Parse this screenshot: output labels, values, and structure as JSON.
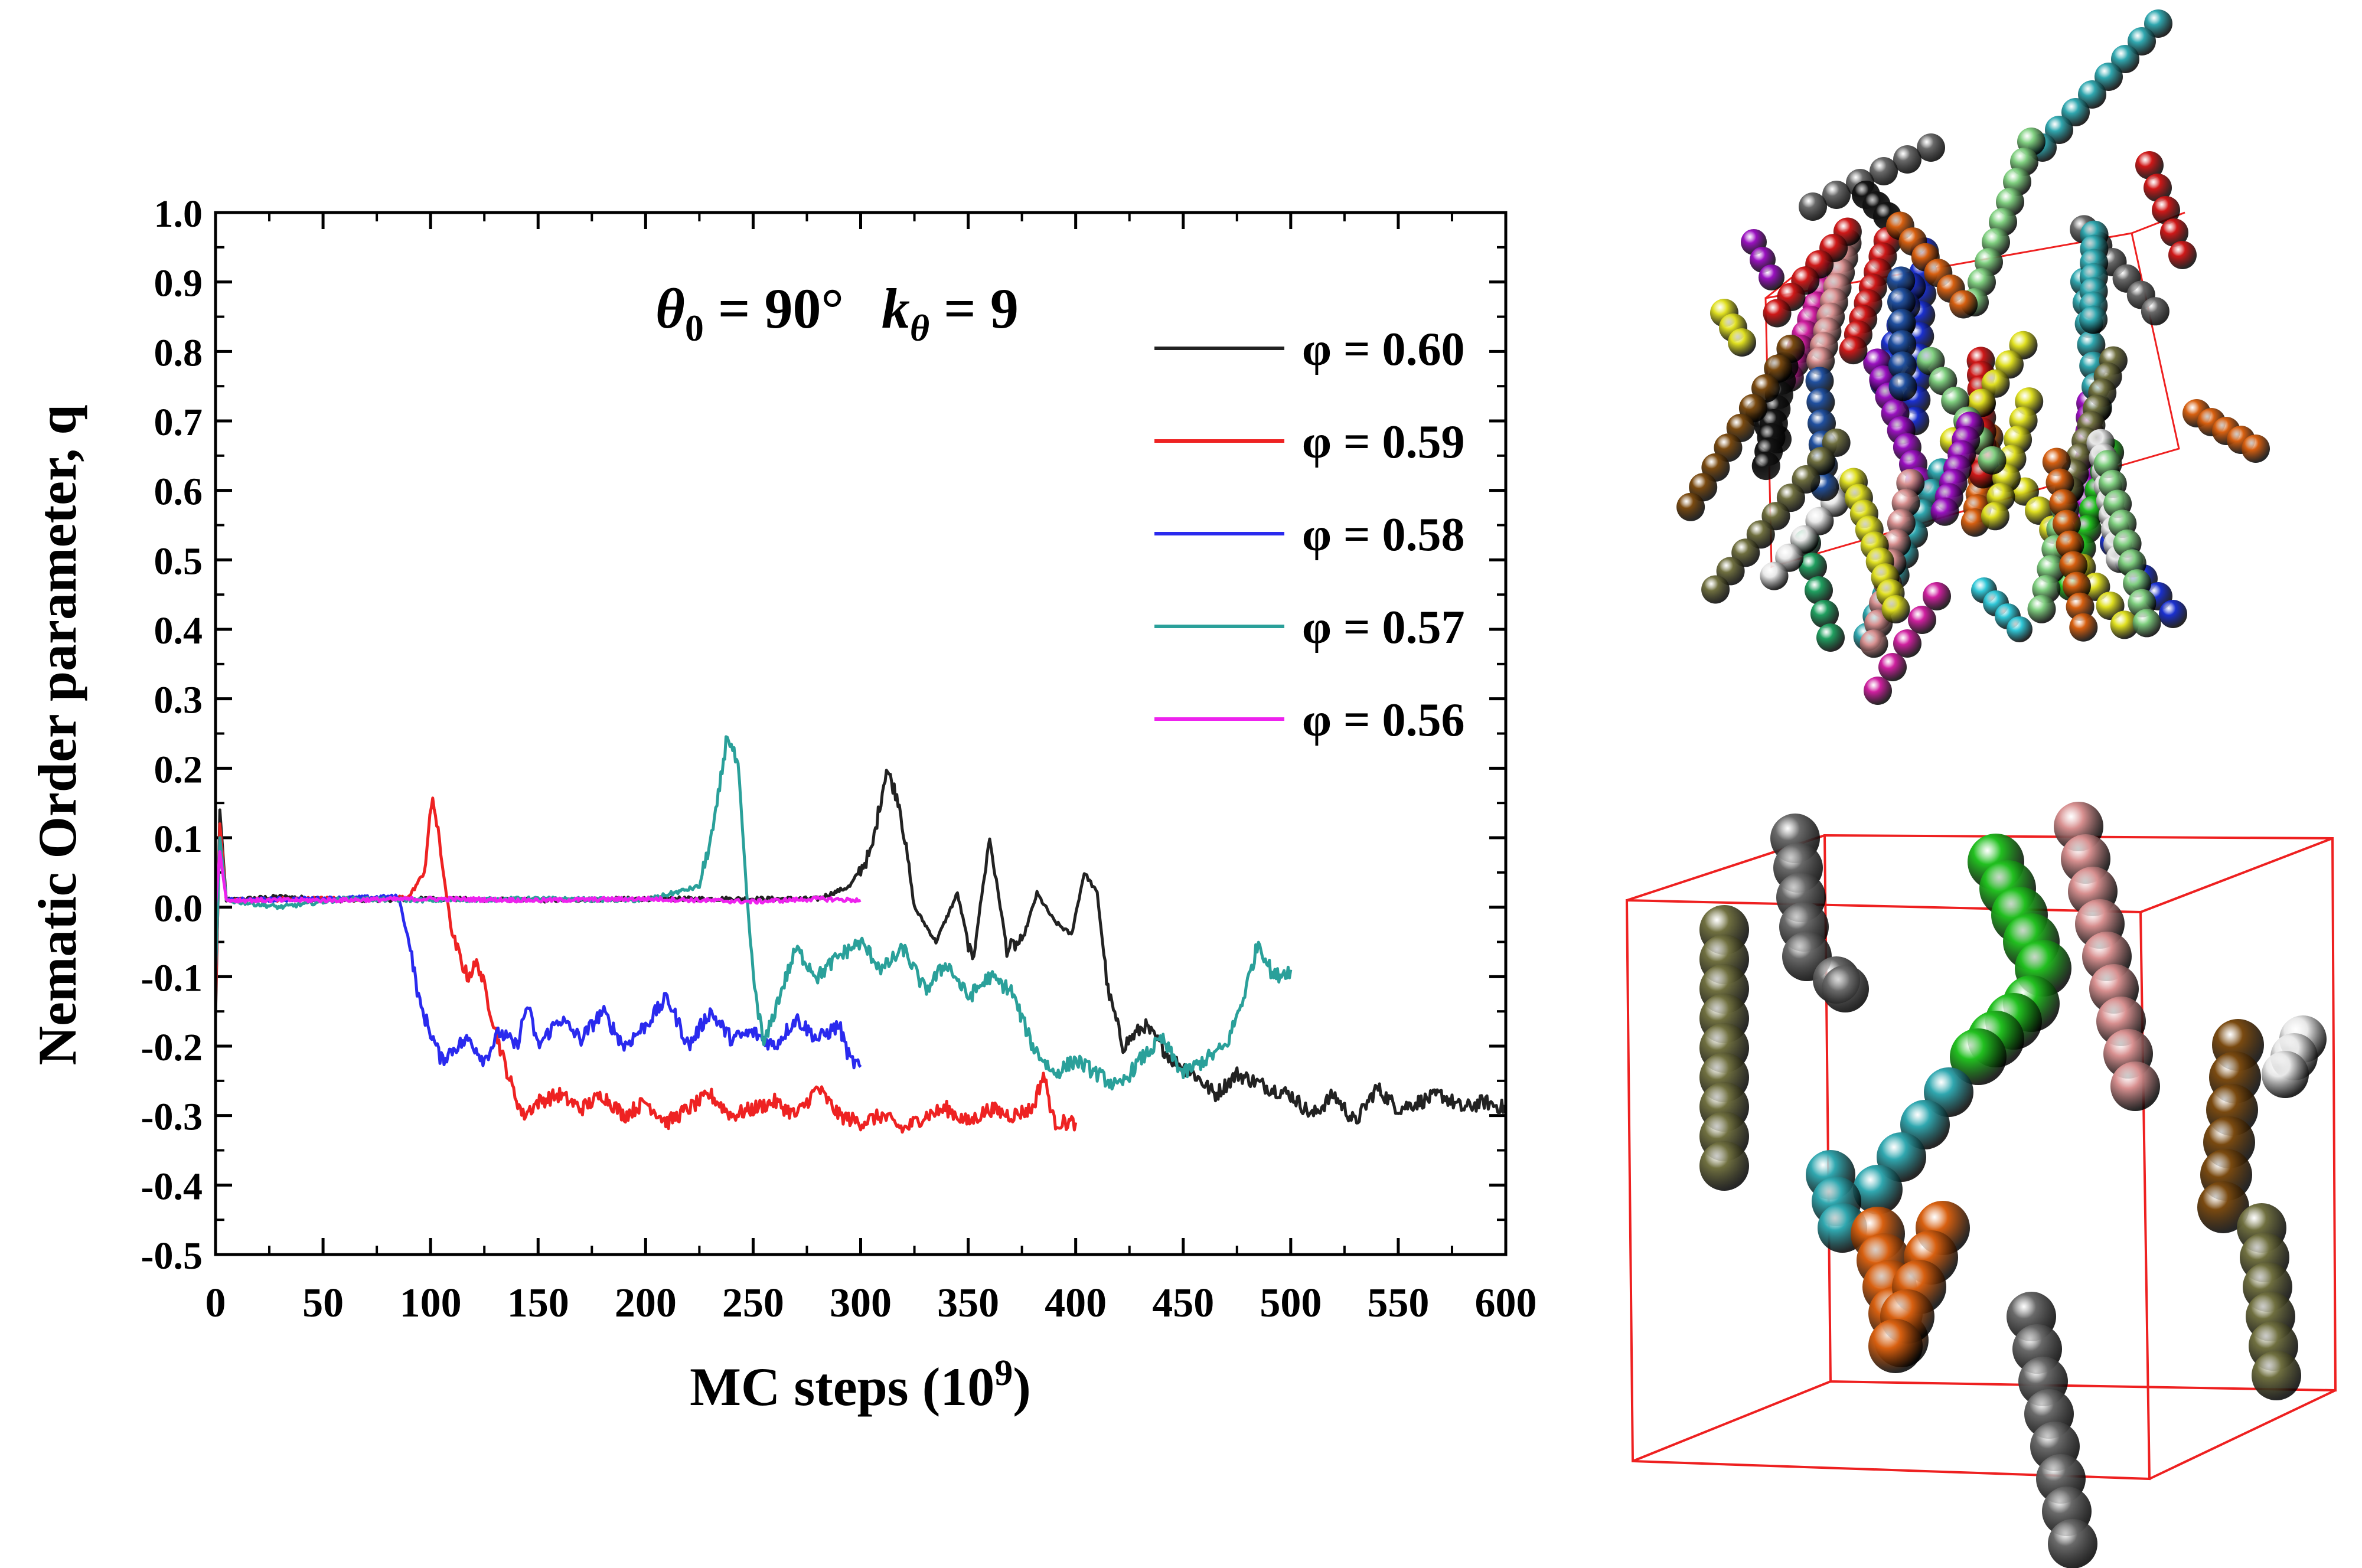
{
  "chart_data": {
    "type": "line",
    "ylabel": "Nematic Order parameter, q",
    "xlabel": "MC steps (10⁹)",
    "xlim": [
      0,
      600
    ],
    "ylim": [
      -0.5,
      1.0
    ],
    "xticks": [
      0,
      50,
      100,
      150,
      200,
      250,
      300,
      350,
      400,
      450,
      500,
      550,
      600
    ],
    "yticks": [
      -0.5,
      -0.4,
      -0.3,
      -0.2,
      -0.1,
      0.0,
      0.1,
      0.2,
      0.3,
      0.4,
      0.5,
      0.6,
      0.7,
      0.8,
      0.9,
      1.0
    ],
    "yticklabels": [
      "-0.5",
      "-0.4",
      "-0.3",
      "-0.2",
      "-0.1",
      "0.0",
      "0.1",
      "0.2",
      "0.3",
      "0.4",
      "0.5",
      "0.6",
      "0.7",
      "0.8",
      "0.9",
      "1.0"
    ],
    "legend_position": "top-right",
    "annotation": {
      "theta_label": "θ0 = 90°",
      "k_label": "kθ = 9"
    },
    "grid": false,
    "series": [
      {
        "name": "φ = 0.60",
        "color": "#222222",
        "points": [
          [
            0,
            -0.16
          ],
          [
            2,
            0.14
          ],
          [
            5,
            0.01
          ],
          [
            30,
            0.015
          ],
          [
            60,
            0.01
          ],
          [
            100,
            0.012
          ],
          [
            150,
            0.01
          ],
          [
            200,
            0.012
          ],
          [
            250,
            0.012
          ],
          [
            280,
            0.012
          ],
          [
            295,
            0.03
          ],
          [
            305,
            0.08
          ],
          [
            312,
            0.2
          ],
          [
            318,
            0.15
          ],
          [
            325,
            0.0
          ],
          [
            335,
            -0.05
          ],
          [
            345,
            0.02
          ],
          [
            352,
            -0.08
          ],
          [
            360,
            0.1
          ],
          [
            368,
            -0.06
          ],
          [
            375,
            -0.05
          ],
          [
            382,
            0.02
          ],
          [
            390,
            -0.02
          ],
          [
            398,
            -0.04
          ],
          [
            404,
            0.05
          ],
          [
            410,
            0.02
          ],
          [
            415,
            -0.12
          ],
          [
            422,
            -0.2
          ],
          [
            432,
            -0.17
          ],
          [
            445,
            -0.22
          ],
          [
            455,
            -0.24
          ],
          [
            465,
            -0.27
          ],
          [
            475,
            -0.24
          ],
          [
            490,
            -0.26
          ],
          [
            500,
            -0.27
          ],
          [
            510,
            -0.3
          ],
          [
            520,
            -0.27
          ],
          [
            530,
            -0.31
          ],
          [
            540,
            -0.26
          ],
          [
            550,
            -0.29
          ],
          [
            560,
            -0.28
          ],
          [
            570,
            -0.27
          ],
          [
            580,
            -0.29
          ],
          [
            590,
            -0.28
          ],
          [
            600,
            -0.29
          ]
        ]
      },
      {
        "name": "φ = 0.59",
        "color": "#ee2222",
        "points": [
          [
            0,
            -0.14
          ],
          [
            2,
            0.12
          ],
          [
            5,
            0.01
          ],
          [
            50,
            0.012
          ],
          [
            80,
            0.012
          ],
          [
            90,
            0.015
          ],
          [
            97,
            0.05
          ],
          [
            101,
            0.16
          ],
          [
            106,
            0.05
          ],
          [
            110,
            -0.04
          ],
          [
            117,
            -0.1
          ],
          [
            122,
            -0.08
          ],
          [
            128,
            -0.15
          ],
          [
            133,
            -0.21
          ],
          [
            138,
            -0.26
          ],
          [
            143,
            -0.3
          ],
          [
            150,
            -0.28
          ],
          [
            160,
            -0.27
          ],
          [
            170,
            -0.29
          ],
          [
            180,
            -0.27
          ],
          [
            190,
            -0.3
          ],
          [
            200,
            -0.28
          ],
          [
            210,
            -0.31
          ],
          [
            220,
            -0.29
          ],
          [
            230,
            -0.27
          ],
          [
            240,
            -0.3
          ],
          [
            250,
            -0.29
          ],
          [
            260,
            -0.28
          ],
          [
            270,
            -0.3
          ],
          [
            280,
            -0.26
          ],
          [
            290,
            -0.3
          ],
          [
            300,
            -0.31
          ],
          [
            310,
            -0.3
          ],
          [
            320,
            -0.32
          ],
          [
            330,
            -0.3
          ],
          [
            340,
            -0.29
          ],
          [
            350,
            -0.31
          ],
          [
            360,
            -0.29
          ],
          [
            370,
            -0.3
          ],
          [
            380,
            -0.29
          ],
          [
            385,
            -0.24
          ],
          [
            390,
            -0.31
          ],
          [
            400,
            -0.31
          ]
        ]
      },
      {
        "name": "φ = 0.58",
        "color": "#2a2aee",
        "points": [
          [
            0,
            -0.1
          ],
          [
            2,
            0.1
          ],
          [
            5,
            0.01
          ],
          [
            50,
            0.012
          ],
          [
            85,
            0.015
          ],
          [
            90,
            -0.05
          ],
          [
            95,
            -0.14
          ],
          [
            100,
            -0.18
          ],
          [
            105,
            -0.22
          ],
          [
            112,
            -0.2
          ],
          [
            118,
            -0.19
          ],
          [
            125,
            -0.22
          ],
          [
            132,
            -0.18
          ],
          [
            140,
            -0.2
          ],
          [
            145,
            -0.14
          ],
          [
            150,
            -0.2
          ],
          [
            160,
            -0.16
          ],
          [
            170,
            -0.19
          ],
          [
            180,
            -0.15
          ],
          [
            190,
            -0.2
          ],
          [
            200,
            -0.17
          ],
          [
            210,
            -0.13
          ],
          [
            220,
            -0.2
          ],
          [
            230,
            -0.15
          ],
          [
            240,
            -0.19
          ],
          [
            250,
            -0.18
          ],
          [
            260,
            -0.2
          ],
          [
            270,
            -0.16
          ],
          [
            280,
            -0.19
          ],
          [
            290,
            -0.17
          ],
          [
            295,
            -0.22
          ],
          [
            300,
            -0.23
          ]
        ]
      },
      {
        "name": "φ = 0.57",
        "color": "#2aa09a",
        "points": [
          [
            0,
            -0.1
          ],
          [
            2,
            0.1
          ],
          [
            5,
            0.01
          ],
          [
            30,
            0.0
          ],
          [
            60,
            0.012
          ],
          [
            100,
            0.01
          ],
          [
            150,
            0.012
          ],
          [
            200,
            0.01
          ],
          [
            225,
            0.03
          ],
          [
            232,
            0.12
          ],
          [
            238,
            0.25
          ],
          [
            243,
            0.2
          ],
          [
            247,
            0.02
          ],
          [
            250,
            -0.1
          ],
          [
            255,
            -0.2
          ],
          [
            262,
            -0.13
          ],
          [
            270,
            -0.06
          ],
          [
            280,
            -0.1
          ],
          [
            290,
            -0.07
          ],
          [
            300,
            -0.05
          ],
          [
            310,
            -0.09
          ],
          [
            320,
            -0.06
          ],
          [
            330,
            -0.12
          ],
          [
            340,
            -0.08
          ],
          [
            350,
            -0.13
          ],
          [
            360,
            -0.1
          ],
          [
            370,
            -0.12
          ],
          [
            380,
            -0.2
          ],
          [
            390,
            -0.24
          ],
          [
            400,
            -0.22
          ],
          [
            410,
            -0.24
          ],
          [
            420,
            -0.26
          ],
          [
            430,
            -0.22
          ],
          [
            440,
            -0.19
          ],
          [
            450,
            -0.24
          ],
          [
            460,
            -0.22
          ],
          [
            470,
            -0.2
          ],
          [
            478,
            -0.13
          ],
          [
            485,
            -0.05
          ],
          [
            492,
            -0.1
          ],
          [
            500,
            -0.09
          ]
        ]
      },
      {
        "name": "φ = 0.56",
        "color": "#ee22ee",
        "points": [
          [
            0,
            0.0
          ],
          [
            2,
            0.08
          ],
          [
            5,
            0.01
          ],
          [
            50,
            0.01
          ],
          [
            100,
            0.012
          ],
          [
            150,
            0.01
          ],
          [
            200,
            0.012
          ],
          [
            250,
            0.008
          ],
          [
            280,
            0.012
          ],
          [
            300,
            0.01
          ]
        ]
      }
    ]
  },
  "insets": [
    {
      "label": "simulation-snapshot-dense"
    },
    {
      "label": "simulation-snapshot-sparse"
    }
  ]
}
